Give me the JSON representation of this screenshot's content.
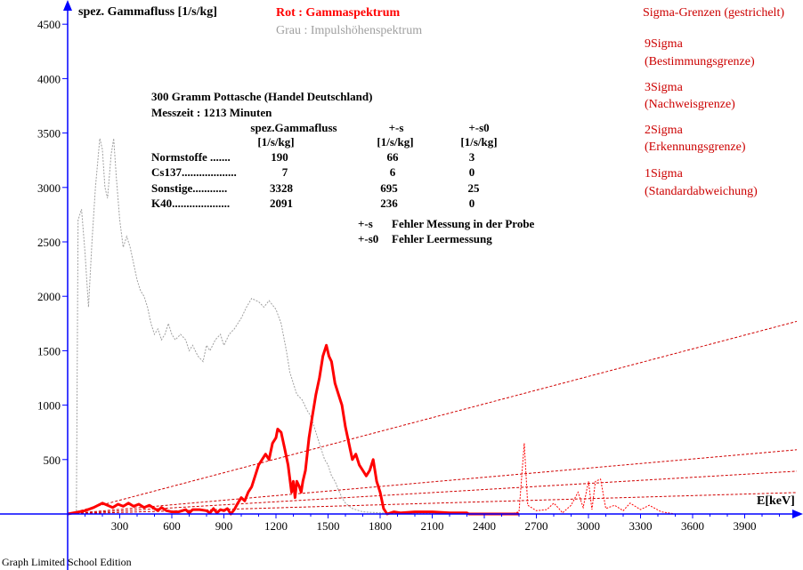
{
  "chart_data": {
    "type": "line",
    "y_axis_label": "spez. Gammafluss [1/s/kg]",
    "x_axis_label": "E[keV]",
    "x_ticks": [
      300,
      600,
      900,
      1200,
      1500,
      1800,
      2100,
      2400,
      2700,
      3000,
      3300,
      3600,
      3900
    ],
    "y_ticks": [
      500,
      1000,
      1500,
      2000,
      2500,
      3000,
      3500,
      4000,
      4500
    ],
    "xlim": [
      -380,
      4200
    ],
    "ylim": [
      -200,
      4700
    ],
    "legend": {
      "red": "Rot : Gammaspektrum",
      "grey": "Grau : Impulshöhenspektrum"
    },
    "sigma_legend": {
      "title": "Sigma-Grenzen (gestrichelt)",
      "items": [
        {
          "name": "9Sigma",
          "desc": "(Bestimmungsgrenze)"
        },
        {
          "name": "3Sigma",
          "desc": "(Nachweisgrenze)"
        },
        {
          "name": "2Sigma",
          "desc": "(Erkennungsgrenze)"
        },
        {
          "name": "1Sigma",
          "desc": "(Standardabweichung)"
        }
      ]
    },
    "info": {
      "sample": "300 Gramm Pottasche (Handel Deutschland)",
      "time": "Messzeit : 1213 Minuten",
      "headers": [
        "spez.Gammafluss",
        "+-s",
        "+-s0"
      ],
      "units": [
        "[1/s/kg]",
        "[1/s/kg]",
        "[1/s/kg]"
      ],
      "rows": [
        {
          "label": "Normstoffe .......",
          "flux": "190",
          "s": "66",
          "s0": "3"
        },
        {
          "label": "Cs137...................",
          "flux": "7",
          "s": "6",
          "s0": "0"
        },
        {
          "label": "Sonstige............",
          "flux": "3328",
          "s": "695",
          "s0": "25"
        },
        {
          "label": "K40....................",
          "flux": "2091",
          "s": "236",
          "s0": "0"
        }
      ],
      "notes": [
        {
          "key": "+-s",
          "text": "Fehler Messung in der Probe"
        },
        {
          "key": "+-s0",
          "text": "Fehler Leermessung"
        }
      ]
    },
    "sigma_lines": [
      {
        "name": "9Sigma",
        "points": [
          [
            0,
            0
          ],
          [
            4200,
            1770
          ]
        ]
      },
      {
        "name": "3Sigma",
        "points": [
          [
            0,
            0
          ],
          [
            4200,
            590
          ]
        ]
      },
      {
        "name": "2Sigma",
        "points": [
          [
            0,
            0
          ],
          [
            4200,
            393
          ]
        ]
      },
      {
        "name": "1Sigma",
        "points": [
          [
            0,
            0
          ],
          [
            4200,
            197
          ]
        ]
      }
    ],
    "series": [
      {
        "key": "grey",
        "color": "#a0a0a0",
        "points": [
          [
            50,
            0
          ],
          [
            60,
            2700
          ],
          [
            80,
            2800
          ],
          [
            100,
            2400
          ],
          [
            120,
            1900
          ],
          [
            140,
            2500
          ],
          [
            160,
            3000
          ],
          [
            185,
            3450
          ],
          [
            200,
            3350
          ],
          [
            215,
            3000
          ],
          [
            230,
            2900
          ],
          [
            250,
            3300
          ],
          [
            265,
            3450
          ],
          [
            280,
            3100
          ],
          [
            300,
            2700
          ],
          [
            320,
            2450
          ],
          [
            340,
            2550
          ],
          [
            360,
            2450
          ],
          [
            380,
            2300
          ],
          [
            400,
            2150
          ],
          [
            420,
            2050
          ],
          [
            440,
            2000
          ],
          [
            460,
            1900
          ],
          [
            480,
            1750
          ],
          [
            500,
            1650
          ],
          [
            520,
            1700
          ],
          [
            540,
            1600
          ],
          [
            560,
            1650
          ],
          [
            580,
            1750
          ],
          [
            600,
            1650
          ],
          [
            620,
            1600
          ],
          [
            650,
            1650
          ],
          [
            680,
            1600
          ],
          [
            700,
            1500
          ],
          [
            720,
            1550
          ],
          [
            750,
            1450
          ],
          [
            780,
            1400
          ],
          [
            800,
            1550
          ],
          [
            820,
            1500
          ],
          [
            850,
            1600
          ],
          [
            880,
            1650
          ],
          [
            900,
            1550
          ],
          [
            930,
            1650
          ],
          [
            960,
            1700
          ],
          [
            1000,
            1800
          ],
          [
            1030,
            1900
          ],
          [
            1060,
            1980
          ],
          [
            1100,
            1950
          ],
          [
            1130,
            1900
          ],
          [
            1160,
            1960
          ],
          [
            1200,
            1880
          ],
          [
            1230,
            1750
          ],
          [
            1260,
            1500
          ],
          [
            1280,
            1300
          ],
          [
            1300,
            1200
          ],
          [
            1320,
            1100
          ],
          [
            1350,
            1050
          ],
          [
            1380,
            950
          ],
          [
            1400,
            900
          ],
          [
            1420,
            800
          ],
          [
            1440,
            700
          ],
          [
            1460,
            600
          ],
          [
            1480,
            500
          ],
          [
            1500,
            450
          ],
          [
            1520,
            350
          ],
          [
            1540,
            300
          ],
          [
            1560,
            220
          ],
          [
            1580,
            150
          ],
          [
            1600,
            100
          ],
          [
            1640,
            50
          ],
          [
            1700,
            20
          ],
          [
            1800,
            10
          ],
          [
            2000,
            5
          ],
          [
            2500,
            5
          ],
          [
            2600,
            0
          ]
        ]
      },
      {
        "key": "red",
        "color": "#ff0000",
        "points": [
          [
            0,
            0
          ],
          [
            100,
            30
          ],
          [
            150,
            60
          ],
          [
            200,
            100
          ],
          [
            230,
            80
          ],
          [
            260,
            60
          ],
          [
            290,
            90
          ],
          [
            320,
            70
          ],
          [
            350,
            100
          ],
          [
            380,
            70
          ],
          [
            410,
            90
          ],
          [
            440,
            60
          ],
          [
            470,
            80
          ],
          [
            500,
            50
          ],
          [
            520,
            30
          ],
          [
            540,
            60
          ],
          [
            570,
            30
          ],
          [
            600,
            20
          ],
          [
            640,
            20
          ],
          [
            680,
            40
          ],
          [
            700,
            10
          ],
          [
            720,
            40
          ],
          [
            760,
            40
          ],
          [
            800,
            30
          ],
          [
            820,
            10
          ],
          [
            840,
            50
          ],
          [
            860,
            10
          ],
          [
            880,
            40
          ],
          [
            900,
            30
          ],
          [
            920,
            50
          ],
          [
            940,
            0
          ],
          [
            960,
            40
          ],
          [
            980,
            100
          ],
          [
            1000,
            150
          ],
          [
            1020,
            120
          ],
          [
            1040,
            200
          ],
          [
            1060,
            250
          ],
          [
            1080,
            350
          ],
          [
            1100,
            450
          ],
          [
            1120,
            500
          ],
          [
            1140,
            550
          ],
          [
            1160,
            500
          ],
          [
            1180,
            650
          ],
          [
            1200,
            700
          ],
          [
            1210,
            780
          ],
          [
            1230,
            750
          ],
          [
            1250,
            600
          ],
          [
            1270,
            450
          ],
          [
            1290,
            200
          ],
          [
            1300,
            300
          ],
          [
            1310,
            150
          ],
          [
            1320,
            300
          ],
          [
            1335,
            250
          ],
          [
            1345,
            200
          ],
          [
            1355,
            300
          ],
          [
            1370,
            400
          ],
          [
            1390,
            700
          ],
          [
            1410,
            900
          ],
          [
            1430,
            1100
          ],
          [
            1450,
            1250
          ],
          [
            1470,
            1450
          ],
          [
            1490,
            1550
          ],
          [
            1505,
            1450
          ],
          [
            1520,
            1400
          ],
          [
            1540,
            1200
          ],
          [
            1560,
            1100
          ],
          [
            1580,
            1000
          ],
          [
            1600,
            800
          ],
          [
            1620,
            650
          ],
          [
            1640,
            500
          ],
          [
            1660,
            550
          ],
          [
            1680,
            450
          ],
          [
            1700,
            400
          ],
          [
            1720,
            350
          ],
          [
            1740,
            400
          ],
          [
            1760,
            500
          ],
          [
            1780,
            300
          ],
          [
            1800,
            200
          ],
          [
            1820,
            50
          ],
          [
            1840,
            0
          ],
          [
            1880,
            20
          ],
          [
            1920,
            10
          ],
          [
            2000,
            20
          ],
          [
            2100,
            20
          ],
          [
            2200,
            10
          ],
          [
            2300,
            10
          ],
          [
            2310,
            0
          ],
          [
            2600,
            0
          ]
        ]
      },
      {
        "key": "red_small",
        "color": "#ff0000",
        "points": [
          [
            2550,
            0
          ],
          [
            2600,
            20
          ],
          [
            2630,
            650
          ],
          [
            2650,
            80
          ],
          [
            2700,
            30
          ],
          [
            2760,
            40
          ],
          [
            2800,
            100
          ],
          [
            2830,
            50
          ],
          [
            2850,
            10
          ],
          [
            2900,
            80
          ],
          [
            2940,
            200
          ],
          [
            2970,
            60
          ],
          [
            3000,
            300
          ],
          [
            3020,
            40
          ],
          [
            3040,
            300
          ],
          [
            3070,
            320
          ],
          [
            3100,
            50
          ],
          [
            3150,
            80
          ],
          [
            3200,
            30
          ],
          [
            3240,
            100
          ],
          [
            3300,
            40
          ],
          [
            3350,
            80
          ],
          [
            3420,
            20
          ],
          [
            3500,
            0
          ]
        ]
      }
    ]
  },
  "footer": "Graph Limited School Edition"
}
